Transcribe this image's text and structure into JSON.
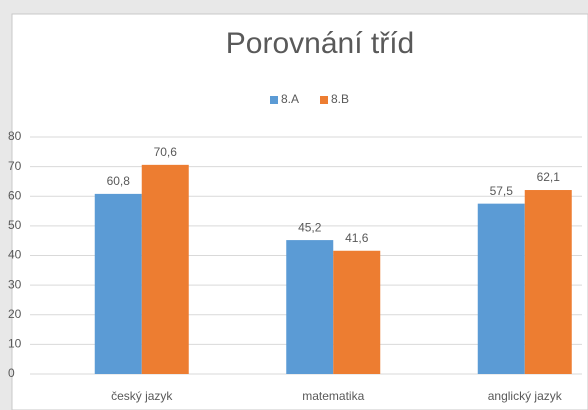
{
  "chart_data": {
    "type": "bar",
    "title": "Porovnání tříd",
    "categories": [
      "český jazyk",
      "matematika",
      "anglický jazyk"
    ],
    "series": [
      {
        "name": "8.A",
        "color": "#5b9bd5",
        "values": [
          60.8,
          45.2,
          57.5
        ],
        "value_labels": [
          "60,8",
          "45,2",
          "57,5"
        ]
      },
      {
        "name": "8.B",
        "color": "#ed7d31",
        "values": [
          70.6,
          41.6,
          62.1
        ],
        "value_labels": [
          "70,6",
          "41,6",
          "62,1"
        ]
      }
    ],
    "ylim": [
      0,
      80
    ],
    "yticks": [
      0,
      10,
      20,
      30,
      40,
      50,
      60,
      70,
      80
    ],
    "grid": true,
    "legend": "top"
  }
}
